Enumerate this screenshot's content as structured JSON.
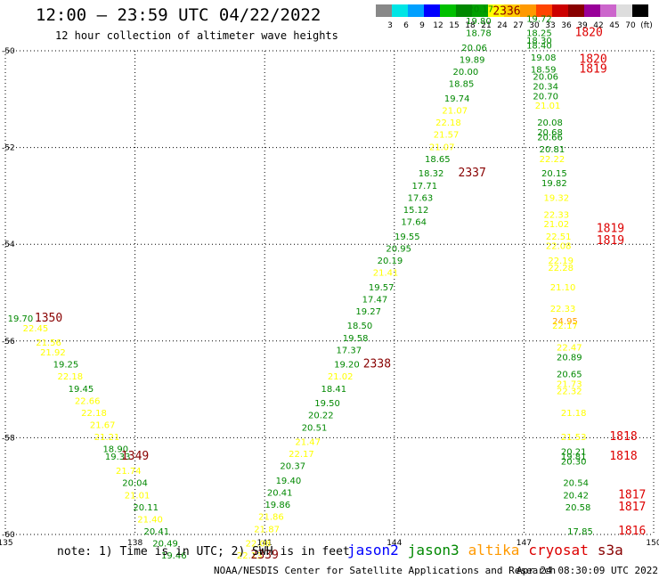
{
  "title": "12:00 – 23:59 UTC 04/22/2022",
  "subtitle": "12 hour collection of altimeter wave heights",
  "colorbar": {
    "labels": [
      "3",
      "6",
      "9",
      "12",
      "15",
      "18",
      "21",
      "24",
      "27",
      "30",
      "33",
      "36",
      "39",
      "42",
      "45",
      "70",
      "(ft)"
    ],
    "colors": [
      "#888888",
      "#00e5e5",
      "#00a0ff",
      "#0000ff",
      "#00c000",
      "#008800",
      "#00a000",
      "#ffff00",
      "#ffcc00",
      "#ff9900",
      "#ff4400",
      "#cc0000",
      "#880000",
      "#990099",
      "#cc66cc",
      "#dddddd",
      "#000000"
    ]
  },
  "footer": {
    "note": "note: 1) Time is in UTC; 2) SWH is in feet",
    "credit": "NOAA/NESDIS Center for Satellite Applications and Research",
    "timestamp": "Apr 24 08:30:09 UTC 2022"
  },
  "legend": [
    {
      "name": "jason2",
      "color": "#0000ff"
    },
    {
      "name": "jason3",
      "color": "#008800"
    },
    {
      "name": "altika",
      "color": "#ff9900"
    },
    {
      "name": "cryosat",
      "color": "#dd0000"
    },
    {
      "name": "s3a",
      "color": "#880000"
    }
  ],
  "chart_data": {
    "type": "scatter",
    "xlim": [
      135,
      150
    ],
    "ylim": [
      -60,
      -50
    ],
    "xticks": [
      "135",
      "138",
      "141",
      "144",
      "147",
      "150"
    ],
    "yticks": [
      "-50",
      "-52",
      "-54",
      "-56",
      "-58",
      "-60"
    ],
    "grid": true,
    "colors": {
      "green": "#008800",
      "yellow": "#ffff00",
      "orange": "#ff9900",
      "red": "#dd0000",
      "dark": "#880000"
    },
    "points": [
      {
        "lon": 135.35,
        "lat": -55.6,
        "v": "19.70",
        "c": "green"
      },
      {
        "lon": 135.7,
        "lat": -55.8,
        "v": "22.45",
        "c": "yellow"
      },
      {
        "lon": 136.0,
        "lat": -56.1,
        "v": "21.56",
        "c": "yellow"
      },
      {
        "lon": 136.1,
        "lat": -56.3,
        "v": "21.92",
        "c": "yellow"
      },
      {
        "lon": 136.4,
        "lat": -56.55,
        "v": "19.25",
        "c": "green"
      },
      {
        "lon": 136.5,
        "lat": -56.8,
        "v": "22.18",
        "c": "yellow"
      },
      {
        "lon": 136.75,
        "lat": -57.05,
        "v": "19.45",
        "c": "green"
      },
      {
        "lon": 136.9,
        "lat": -57.3,
        "v": "22.66",
        "c": "yellow"
      },
      {
        "lon": 137.05,
        "lat": -57.55,
        "v": "22.18",
        "c": "yellow"
      },
      {
        "lon": 137.25,
        "lat": -57.8,
        "v": "21.67",
        "c": "yellow"
      },
      {
        "lon": 137.35,
        "lat": -58.05,
        "v": "21.21",
        "c": "yellow"
      },
      {
        "lon": 137.55,
        "lat": -58.3,
        "v": "18.90",
        "c": "green"
      },
      {
        "lon": 137.6,
        "lat": -58.45,
        "v": "19.33",
        "c": "green"
      },
      {
        "lon": 137.85,
        "lat": -58.75,
        "v": "21.74",
        "c": "yellow"
      },
      {
        "lon": 138.0,
        "lat": -59.0,
        "v": "20.04",
        "c": "green"
      },
      {
        "lon": 138.05,
        "lat": -59.25,
        "v": "21.01",
        "c": "yellow"
      },
      {
        "lon": 138.25,
        "lat": -59.5,
        "v": "20.11",
        "c": "green"
      },
      {
        "lon": 138.35,
        "lat": -59.75,
        "v": "21.40",
        "c": "yellow"
      },
      {
        "lon": 138.5,
        "lat": -60.0,
        "v": "20.41",
        "c": "green"
      },
      {
        "lon": 138.7,
        "lat": -60.25,
        "v": "20.49",
        "c": "green"
      },
      {
        "lon": 138.9,
        "lat": -60.5,
        "v": "19.46",
        "c": "green"
      },
      {
        "lon": 140.65,
        "lat": -60.5,
        "v": "22.13",
        "c": "yellow"
      },
      {
        "lon": 140.85,
        "lat": -60.25,
        "v": "22.08",
        "c": "yellow"
      },
      {
        "lon": 141.05,
        "lat": -59.95,
        "v": "21.87",
        "c": "yellow"
      },
      {
        "lon": 141.15,
        "lat": -59.7,
        "v": "21.86",
        "c": "yellow"
      },
      {
        "lon": 141.3,
        "lat": -59.45,
        "v": "19.86",
        "c": "green"
      },
      {
        "lon": 141.35,
        "lat": -59.2,
        "v": "20.41",
        "c": "green"
      },
      {
        "lon": 141.55,
        "lat": -58.95,
        "v": "19.40",
        "c": "green"
      },
      {
        "lon": 141.65,
        "lat": -58.65,
        "v": "20.37",
        "c": "green"
      },
      {
        "lon": 141.85,
        "lat": -58.4,
        "v": "22.17",
        "c": "yellow"
      },
      {
        "lon": 142.0,
        "lat": -58.15,
        "v": "21.47",
        "c": "yellow"
      },
      {
        "lon": 142.15,
        "lat": -57.85,
        "v": "20.51",
        "c": "green"
      },
      {
        "lon": 142.3,
        "lat": -57.6,
        "v": "20.22",
        "c": "green"
      },
      {
        "lon": 142.45,
        "lat": -57.35,
        "v": "19.50",
        "c": "green"
      },
      {
        "lon": 142.6,
        "lat": -57.05,
        "v": "18.41",
        "c": "green"
      },
      {
        "lon": 142.75,
        "lat": -56.8,
        "v": "21.02",
        "c": "yellow"
      },
      {
        "lon": 142.9,
        "lat": -56.55,
        "v": "19.20",
        "c": "green"
      },
      {
        "lon": 142.95,
        "lat": -56.25,
        "v": "17.37",
        "c": "green"
      },
      {
        "lon": 143.1,
        "lat": -56.0,
        "v": "19.58",
        "c": "green"
      },
      {
        "lon": 143.2,
        "lat": -55.75,
        "v": "18.50",
        "c": "green"
      },
      {
        "lon": 143.4,
        "lat": -55.45,
        "v": "19.27",
        "c": "green"
      },
      {
        "lon": 143.55,
        "lat": -55.2,
        "v": "17.47",
        "c": "green"
      },
      {
        "lon": 143.7,
        "lat": -54.95,
        "v": "19.57",
        "c": "green"
      },
      {
        "lon": 143.8,
        "lat": -54.65,
        "v": "21.41",
        "c": "yellow"
      },
      {
        "lon": 143.9,
        "lat": -54.4,
        "v": "20.19",
        "c": "green"
      },
      {
        "lon": 144.1,
        "lat": -54.15,
        "v": "20.95",
        "c": "green"
      },
      {
        "lon": 144.3,
        "lat": -53.9,
        "v": "19.55",
        "c": "green"
      },
      {
        "lon": 144.45,
        "lat": -53.6,
        "v": "17.64",
        "c": "green"
      },
      {
        "lon": 144.5,
        "lat": -53.35,
        "v": "15.12",
        "c": "green"
      },
      {
        "lon": 144.6,
        "lat": -53.1,
        "v": "17.63",
        "c": "green"
      },
      {
        "lon": 144.7,
        "lat": -52.85,
        "v": "17.71",
        "c": "green"
      },
      {
        "lon": 144.85,
        "lat": -52.6,
        "v": "18.32",
        "c": "green"
      },
      {
        "lon": 145.0,
        "lat": -52.3,
        "v": "18.65",
        "c": "green"
      },
      {
        "lon": 145.1,
        "lat": -52.05,
        "v": "21.07",
        "c": "yellow"
      },
      {
        "lon": 145.2,
        "lat": -51.8,
        "v": "21.57",
        "c": "yellow"
      },
      {
        "lon": 145.25,
        "lat": -51.55,
        "v": "22.18",
        "c": "yellow"
      },
      {
        "lon": 145.4,
        "lat": -51.3,
        "v": "21.07",
        "c": "yellow"
      },
      {
        "lon": 145.45,
        "lat": -51.05,
        "v": "19.74",
        "c": "green"
      },
      {
        "lon": 145.55,
        "lat": -50.75,
        "v": "18.85",
        "c": "green"
      },
      {
        "lon": 145.65,
        "lat": -50.5,
        "v": "20.00",
        "c": "green"
      },
      {
        "lon": 145.8,
        "lat": -50.25,
        "v": "19.89",
        "c": "green"
      },
      {
        "lon": 145.85,
        "lat": -50.0,
        "v": "20.06",
        "c": "green"
      },
      {
        "lon": 145.95,
        "lat": -49.7,
        "v": "18.78",
        "c": "green"
      },
      {
        "lon": 145.95,
        "lat": -49.45,
        "v": "19.80",
        "c": "green"
      },
      {
        "lon": 146.0,
        "lat": -49.2,
        "v": "20.17",
        "c": "green"
      },
      {
        "lon": 147.35,
        "lat": -49.4,
        "v": "19.72",
        "c": "green"
      },
      {
        "lon": 147.35,
        "lat": -49.7,
        "v": "18.25",
        "c": "green"
      },
      {
        "lon": 147.35,
        "lat": -49.85,
        "v": "18.30",
        "c": "green"
      },
      {
        "lon": 147.35,
        "lat": -49.95,
        "v": "18.40",
        "c": "green"
      },
      {
        "lon": 147.45,
        "lat": -50.2,
        "v": "19.08",
        "c": "green"
      },
      {
        "lon": 147.45,
        "lat": -50.45,
        "v": "18.59",
        "c": "green"
      },
      {
        "lon": 147.5,
        "lat": -50.6,
        "v": "20.06",
        "c": "green"
      },
      {
        "lon": 147.5,
        "lat": -50.8,
        "v": "20.34",
        "c": "green"
      },
      {
        "lon": 147.5,
        "lat": -51.0,
        "v": "20.70",
        "c": "green"
      },
      {
        "lon": 147.55,
        "lat": -51.2,
        "v": "21.01",
        "c": "yellow"
      },
      {
        "lon": 147.6,
        "lat": -51.55,
        "v": "20.08",
        "c": "green"
      },
      {
        "lon": 147.6,
        "lat": -51.75,
        "v": "20.68",
        "c": "green"
      },
      {
        "lon": 147.6,
        "lat": -51.85,
        "v": "20.66",
        "c": "green"
      },
      {
        "lon": 147.65,
        "lat": -52.1,
        "v": "20.81",
        "c": "green"
      },
      {
        "lon": 147.65,
        "lat": -52.3,
        "v": "22.22",
        "c": "yellow"
      },
      {
        "lon": 147.7,
        "lat": -52.6,
        "v": "20.15",
        "c": "green"
      },
      {
        "lon": 147.7,
        "lat": -52.8,
        "v": "19.82",
        "c": "green"
      },
      {
        "lon": 147.75,
        "lat": -53.1,
        "v": "19.32",
        "c": "yellow"
      },
      {
        "lon": 147.75,
        "lat": -53.45,
        "v": "22.33",
        "c": "yellow"
      },
      {
        "lon": 147.75,
        "lat": -53.65,
        "v": "21.02",
        "c": "yellow"
      },
      {
        "lon": 147.8,
        "lat": -53.9,
        "v": "22.51",
        "c": "yellow"
      },
      {
        "lon": 147.8,
        "lat": -54.1,
        "v": "22.08",
        "c": "yellow"
      },
      {
        "lon": 147.85,
        "lat": -54.4,
        "v": "22.19",
        "c": "yellow"
      },
      {
        "lon": 147.85,
        "lat": -54.55,
        "v": "22.28",
        "c": "yellow"
      },
      {
        "lon": 147.9,
        "lat": -54.95,
        "v": "21.10",
        "c": "yellow"
      },
      {
        "lon": 147.9,
        "lat": -55.4,
        "v": "22.33",
        "c": "yellow"
      },
      {
        "lon": 147.95,
        "lat": -55.65,
        "v": "24.95",
        "c": "orange"
      },
      {
        "lon": 147.95,
        "lat": -55.75,
        "v": "22.17",
        "c": "yellow"
      },
      {
        "lon": 148.05,
        "lat": -56.2,
        "v": "22.47",
        "c": "yellow"
      },
      {
        "lon": 148.05,
        "lat": -56.4,
        "v": "20.89",
        "c": "green"
      },
      {
        "lon": 148.05,
        "lat": -56.75,
        "v": "20.65",
        "c": "green"
      },
      {
        "lon": 148.05,
        "lat": -56.95,
        "v": "21.73",
        "c": "yellow"
      },
      {
        "lon": 148.05,
        "lat": -57.1,
        "v": "22.32",
        "c": "yellow"
      },
      {
        "lon": 148.15,
        "lat": -57.55,
        "v": "21.18",
        "c": "yellow"
      },
      {
        "lon": 148.15,
        "lat": -58.05,
        "v": "21.53",
        "c": "yellow"
      },
      {
        "lon": 148.15,
        "lat": -58.35,
        "v": "20.21",
        "c": "green"
      },
      {
        "lon": 148.15,
        "lat": -58.45,
        "v": "19.81",
        "c": "green"
      },
      {
        "lon": 148.15,
        "lat": -58.55,
        "v": "20.30",
        "c": "green"
      },
      {
        "lon": 148.2,
        "lat": -59.0,
        "v": "20.54",
        "c": "green"
      },
      {
        "lon": 148.2,
        "lat": -59.25,
        "v": "20.42",
        "c": "green"
      },
      {
        "lon": 148.25,
        "lat": -59.5,
        "v": "20.58",
        "c": "green"
      },
      {
        "lon": 148.3,
        "lat": -60.0,
        "v": "17.85",
        "c": "green"
      }
    ],
    "pass_labels": [
      {
        "lon": 136.0,
        "lat": -55.6,
        "v": "1350",
        "c": "dark"
      },
      {
        "lon": 138.0,
        "lat": -58.45,
        "v": "1349",
        "c": "dark"
      },
      {
        "lon": 141.0,
        "lat": -60.5,
        "v": "2339",
        "c": "dark"
      },
      {
        "lon": 143.6,
        "lat": -56.55,
        "v": "2338",
        "c": "dark"
      },
      {
        "lon": 145.8,
        "lat": -52.6,
        "v": "2337",
        "c": "dark"
      },
      {
        "lon": 146.6,
        "lat": -49.25,
        "v": "2336",
        "c": "dark"
      },
      {
        "lon": 148.5,
        "lat": -49.7,
        "v": "1820",
        "c": "red"
      },
      {
        "lon": 148.6,
        "lat": -50.25,
        "v": "1820",
        "c": "red"
      },
      {
        "lon": 148.6,
        "lat": -50.45,
        "v": "1819",
        "c": "red"
      },
      {
        "lon": 149.0,
        "lat": -53.75,
        "v": "1819",
        "c": "red"
      },
      {
        "lon": 149.0,
        "lat": -54.0,
        "v": "1819",
        "c": "red"
      },
      {
        "lon": 149.3,
        "lat": -58.05,
        "v": "1818",
        "c": "red"
      },
      {
        "lon": 149.3,
        "lat": -58.45,
        "v": "1818",
        "c": "red"
      },
      {
        "lon": 149.5,
        "lat": -59.25,
        "v": "1817",
        "c": "red"
      },
      {
        "lon": 149.5,
        "lat": -59.5,
        "v": "1817",
        "c": "red"
      },
      {
        "lon": 149.5,
        "lat": -60.0,
        "v": "1816",
        "c": "red"
      }
    ]
  }
}
